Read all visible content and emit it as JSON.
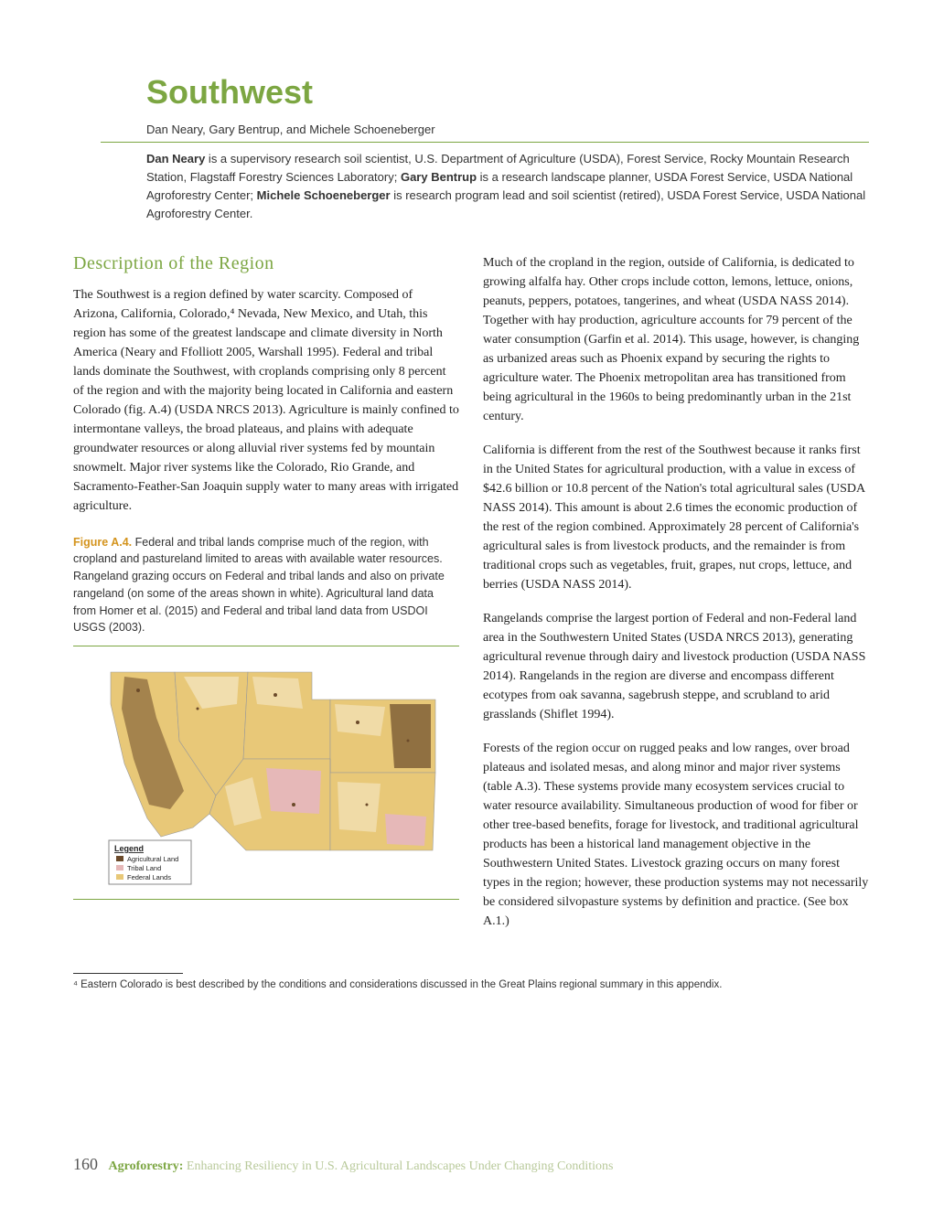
{
  "title": "Southwest",
  "authors": "Dan Neary, Gary Bentrup, and Michele Schoeneberger",
  "bio_html": "<b>Dan Neary</b> is a supervisory research soil scientist, U.S. Department of Agriculture (USDA), Forest Service, Rocky Mountain Research Station, Flagstaff Forestry Sciences Laboratory; <b>Gary Bentrup</b> is a research landscape planner, USDA Forest Service, USDA National Agroforestry Center; <b>Michele Schoeneberger</b> is research program lead and soil scientist (retired), USDA Forest Service, USDA National Agroforestry Center.",
  "section_heading": "Description of the Region",
  "col1_para1": "The Southwest is a region defined by water scarcity. Composed of Arizona, California, Colorado,⁴ Nevada, New Mexico, and Utah, this region has some of the greatest landscape and climate diversity in North America (Neary and Ffolliott 2005, Warshall 1995). Federal and tribal lands dominate the Southwest, with croplands comprising only 8 percent of the region and with the majority being located in California and eastern Colorado (fig. A.4) (USDA NRCS 2013). Agriculture is mainly confined to intermontane valleys, the broad plateaus, and plains with adequate groundwater resources or along alluvial river systems fed by mountain snowmelt. Major river systems like the Colorado, Rio Grande, and Sacramento-Feather-San Joaquin supply water to many areas with irrigated agriculture.",
  "fig_caption_label": "Figure A.4.",
  "fig_caption_text": " Federal and tribal lands comprise much of the region, with cropland and pastureland limited to areas with available water resources. Rangeland grazing occurs on Federal and tribal lands and also on private rangeland (on some of the areas shown in white). Agricultural land data from Homer et al. (2015) and Federal and tribal land data from USDOI USGS (2003).",
  "col2_para1": "Much of the cropland in the region, outside of California, is dedicated to growing alfalfa hay. Other crops include cotton, lemons, lettuce, onions, peanuts, peppers, potatoes, tangerines, and wheat (USDA NASS 2014). Together with hay production, agriculture accounts for 79 percent of the water consumption (Garfin et al. 2014). This usage, however, is changing as urbanized areas such as Phoenix expand by securing the rights to agriculture water. The Phoenix metropolitan area has transitioned from being agricultural in the 1960s to being predominantly urban in the 21st century.",
  "col2_para2": "California is different from the rest of the Southwest because it ranks first in the United States for agricultural production, with a value in excess of $42.6 billion or 10.8 percent of the Nation's total agricultural sales (USDA NASS 2014). This amount is about 2.6 times the economic production of the rest of the region combined. Approximately 28 percent of California's agricultural sales is from livestock products, and the remainder is from traditional crops such as vegetables, fruit, grapes, nut crops, lettuce, and berries (USDA NASS 2014).",
  "col2_para3": "Rangelands comprise the largest portion of Federal and non-Federal land area in the Southwestern United States (USDA NRCS 2013), generating agricultural revenue through dairy and livestock production (USDA NASS 2014). Rangelands in the region are diverse and encompass different ecotypes from oak savanna, sagebrush steppe, and scrubland to arid grasslands (Shiflet 1994).",
  "col2_para4": "Forests of the region occur on rugged peaks and low ranges, over broad plateaus and isolated mesas, and along minor and major river systems (table A.3). These systems provide many ecosystem services crucial to water resource availability. Simultaneous production of wood for fiber or other tree-based benefits, forage for livestock, and traditional agricultural products has been a historical land management objective in the Southwestern United States. Livestock grazing occurs on many forest types in the region; however, these production systems may not necessarily be considered silvopasture systems by definition and practice. (See box A.1.)",
  "footnote_text": "⁴ Eastern Colorado is best described by the conditions and considerations discussed in the Great Plains regional summary in this appendix.",
  "footer_pagenum": "160",
  "footer_bold": "Agroforestry:",
  "footer_light": " Enhancing Resiliency in U.S. Agricultural Landscapes Under Changing Conditions",
  "map": {
    "colors": {
      "background": "#ffffff",
      "agricultural": "#6b4a2a",
      "tribal": "#e6b8b8",
      "federal": "#e8c878",
      "outline": "#999999",
      "border": "#7ca642"
    },
    "legend": {
      "title": "Legend",
      "items": [
        {
          "label": "Agricultural Land",
          "color": "#6b4a2a"
        },
        {
          "label": "Tribal Land",
          "color": "#e6b8b8"
        },
        {
          "label": "Federal Lands",
          "color": "#e8c878"
        }
      ]
    }
  }
}
